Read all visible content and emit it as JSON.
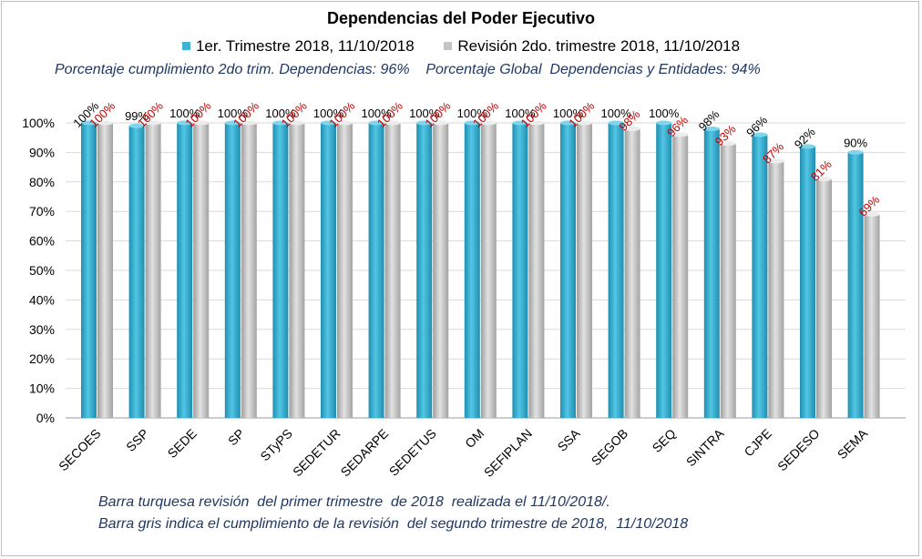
{
  "chart_data": {
    "type": "bar",
    "title": "Dependencias del Poder Ejecutivo",
    "subtitle": "Porcentaje cumplimiento 2do trim. Dependencias: 96%    Porcentaje Global  Dependencias y Entidades: 94%",
    "categories": [
      "SECOES",
      "SSP",
      "SEDE",
      "SP",
      "STyPS",
      "SEDETUR",
      "SEDARPE",
      "SEDETUS",
      "OM",
      "SEFIPLAN",
      "SSA",
      "SEGOB",
      "SEQ",
      "SINTRA",
      "CJPE",
      "SEDESO",
      "SEMA"
    ],
    "series": [
      {
        "name": "1er. Trimestre 2018, 11/10/2018",
        "values": [
          100,
          99,
          100,
          100,
          100,
          100,
          100,
          100,
          100,
          100,
          100,
          100,
          100,
          98,
          96,
          92,
          90
        ],
        "labels": [
          "100%",
          "99%",
          "100%",
          "100%",
          "100%",
          "100%",
          "100%",
          "100%",
          "100%",
          "100%",
          "100%",
          "100%",
          "100%",
          "98%",
          "96%",
          "92%",
          "90%"
        ],
        "color": "#3fb3d3"
      },
      {
        "name": "Revisión 2do. trimestre 2018, 11/10/2018",
        "values": [
          100,
          100,
          100,
          100,
          100,
          100,
          100,
          100,
          100,
          100,
          100,
          98,
          96,
          93,
          87,
          81,
          69
        ],
        "labels": [
          "100%",
          "100%",
          "100%",
          "100%",
          "100%",
          "100%",
          "100%",
          "100%",
          "100%",
          "100%",
          "100%",
          "98%",
          "96%",
          "93%",
          "87%",
          "81%",
          "69%"
        ],
        "color": "#c4c4c4"
      }
    ],
    "ylim": [
      0,
      100
    ],
    "yticks": [
      "0%",
      "10%",
      "20%",
      "30%",
      "40%",
      "50%",
      "60%",
      "70%",
      "80%",
      "90%",
      "100%"
    ],
    "grid": true,
    "legend_position": "top"
  },
  "notes": [
    "Barra turquesa revisión  del primer trimestre  de 2018  realizada el 11/10/2018/.",
    "Barra gris indica el cumplimiento de la revisión  del segundo trimestre de 2018,  11/10/2018"
  ]
}
